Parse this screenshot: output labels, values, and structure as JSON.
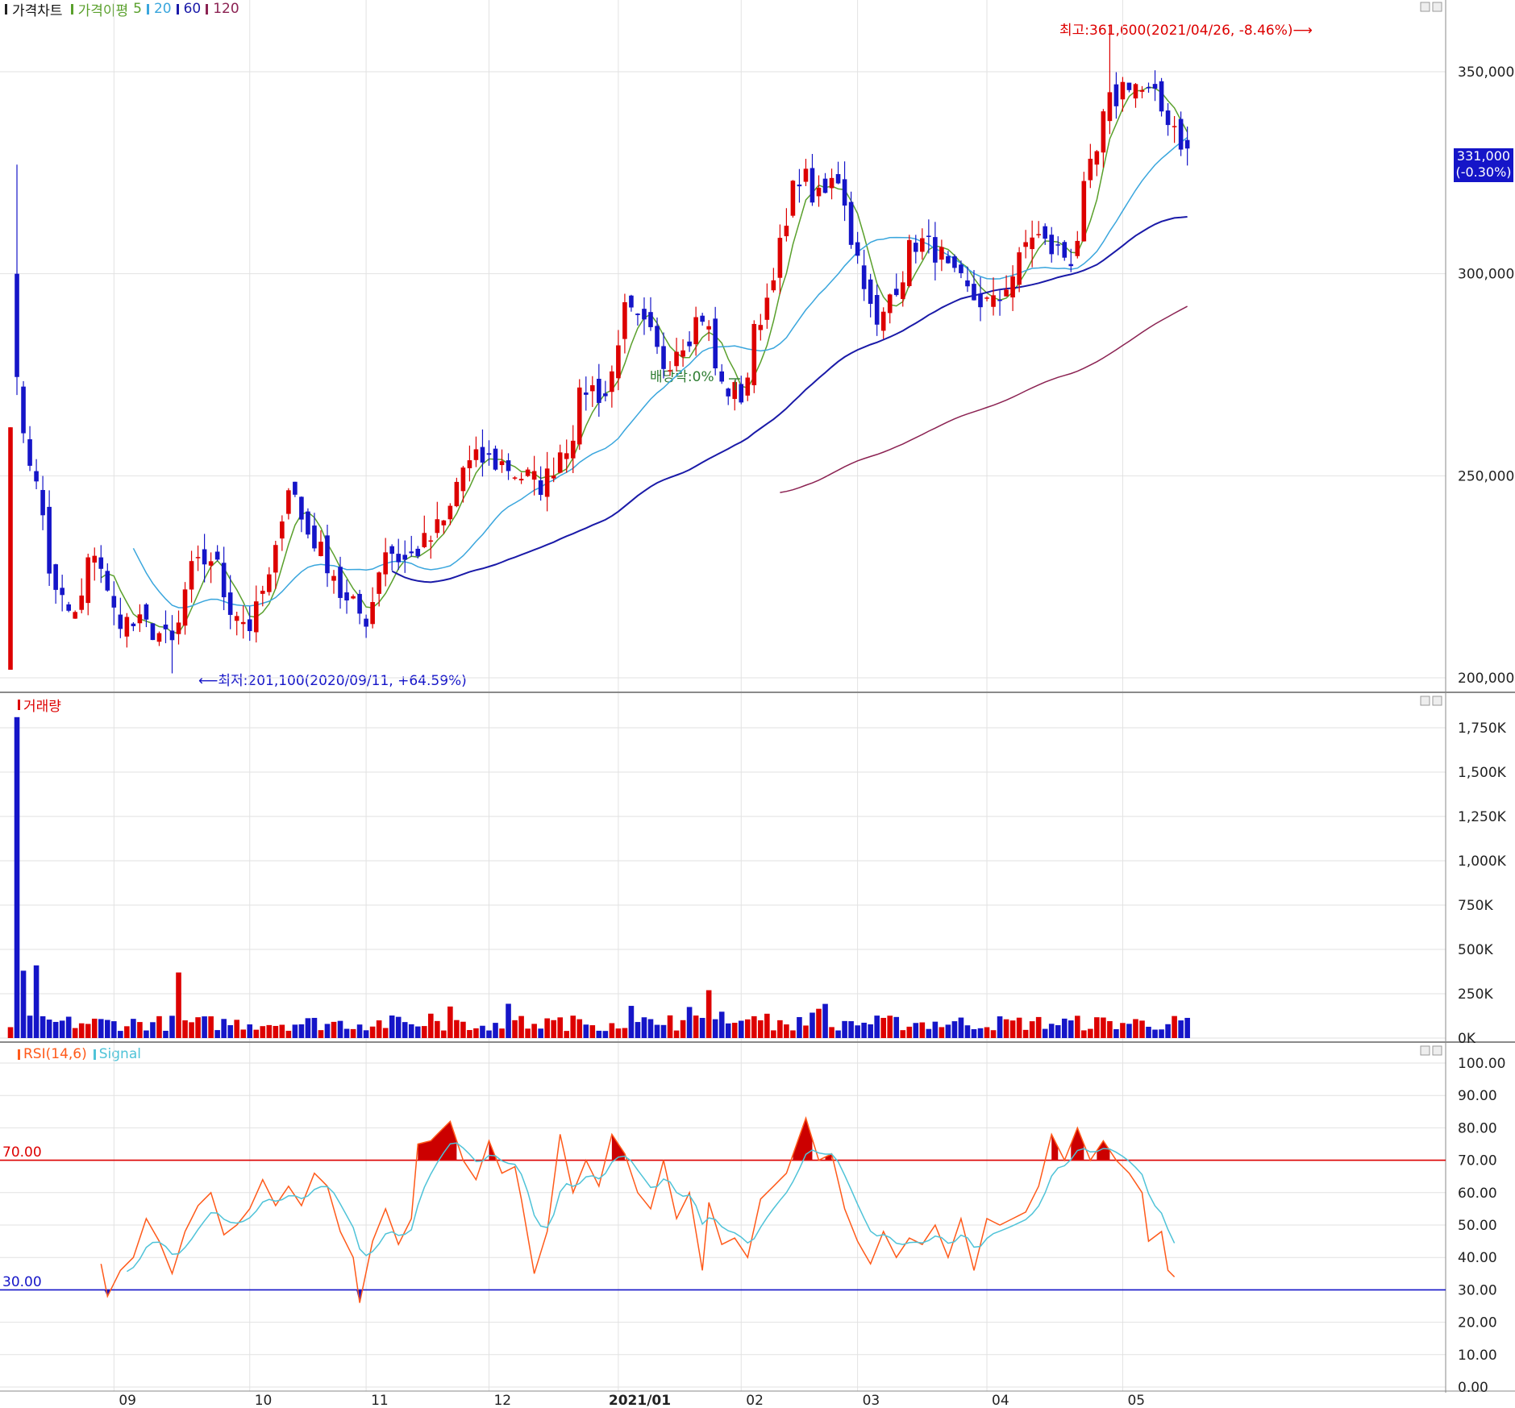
{
  "legend": {
    "price_chart": "가격차트",
    "ma_label": "가격이평",
    "ma_periods": [
      "5",
      "20",
      "60",
      "120"
    ],
    "ma_colors": [
      "#5aa02c",
      "#3aa6dd",
      "#1a1aa8",
      "#8b2252"
    ],
    "volume": "거래량",
    "rsi": "RSI(14,6)",
    "signal": "Signal"
  },
  "colors": {
    "up": "#dd0000",
    "down": "#1515c8",
    "rsi_line": "#ff5a1a",
    "signal_line": "#4fc3d8",
    "rsi_fill": "#cc0000",
    "upper_line": "#dd0000",
    "lower_line": "#1515c8",
    "current_badge": "#1515c8"
  },
  "annotations": {
    "high": "최고:361,600(2021/04/26, -8.46%)⟶",
    "low": "⟵최저:201,100(2020/09/11, +64.59%)",
    "dividend": "배당락:0%"
  },
  "current_price": {
    "price": "331,000",
    "change": "(-0.30%)"
  },
  "rsi_levels": {
    "upper": "70.00",
    "lower": "30.00"
  },
  "chart_data": [
    {
      "type": "candlestick",
      "title": "가격차트",
      "y_ticks": [
        "350,000",
        "300,000",
        "250,000",
        "200,000"
      ],
      "ylim": [
        198000,
        366000
      ],
      "high": 361600,
      "low": 201100,
      "last_close": 331000,
      "x_tick_labels": [
        "09",
        "10",
        "11",
        "12",
        "2021/01",
        "02",
        "03",
        "04",
        "05"
      ],
      "knots": [
        [
          0,
          281000
        ],
        [
          2,
          262000
        ],
        [
          4,
          247000
        ],
        [
          7,
          220000
        ],
        [
          10,
          215000
        ],
        [
          13,
          232000
        ],
        [
          16,
          216000
        ],
        [
          19,
          213000
        ],
        [
          22,
          212000
        ],
        [
          25,
          208000
        ],
        [
          28,
          226000
        ],
        [
          31,
          230000
        ],
        [
          34,
          218000
        ],
        [
          37,
          213000
        ],
        [
          40,
          224000
        ],
        [
          43,
          248000
        ],
        [
          46,
          236000
        ],
        [
          49,
          229000
        ],
        [
          52,
          218000
        ],
        [
          55,
          215000
        ],
        [
          58,
          232000
        ],
        [
          61,
          229000
        ],
        [
          64,
          233000
        ],
        [
          67,
          238000
        ],
        [
          70,
          252000
        ],
        [
          73,
          254000
        ],
        [
          76,
          253000
        ],
        [
          79,
          250000
        ],
        [
          82,
          248000
        ],
        [
          86,
          258000
        ],
        [
          89,
          272000
        ],
        [
          92,
          270000
        ],
        [
          95,
          290000
        ],
        [
          98,
          286000
        ],
        [
          101,
          278000
        ],
        [
          104,
          284000
        ],
        [
          107,
          290000
        ],
        [
          110,
          272000
        ],
        [
          113,
          270000
        ],
        [
          116,
          290000
        ],
        [
          119,
          306000
        ],
        [
          122,
          325000
        ],
        [
          125,
          318000
        ],
        [
          128,
          324000
        ],
        [
          131,
          304000
        ],
        [
          134,
          286000
        ],
        [
          137,
          298000
        ],
        [
          140,
          308000
        ],
        [
          143,
          306000
        ],
        [
          146,
          298000
        ],
        [
          149,
          294000
        ],
        [
          152,
          292000
        ],
        [
          155,
          300000
        ],
        [
          158,
          310000
        ],
        [
          161,
          306000
        ],
        [
          164,
          304000
        ],
        [
          167,
          325000
        ],
        [
          170,
          342000
        ],
        [
          173,
          348000
        ],
        [
          176,
          344000
        ],
        [
          179,
          339000
        ],
        [
          182,
          331000
        ]
      ],
      "moving_averages": [
        {
          "name": "5",
          "color": "#5aa02c"
        },
        {
          "name": "20",
          "color": "#3aa6dd"
        },
        {
          "name": "60",
          "color": "#1a1aa8"
        },
        {
          "name": "120",
          "color": "#8b2252"
        }
      ]
    },
    {
      "type": "bar",
      "title": "거래량",
      "y_ticks": [
        "1,750K",
        "1,500K",
        "1,250K",
        "1,000K",
        "750K",
        "500K",
        "250K",
        "0K"
      ],
      "ylim": [
        0,
        1750000
      ],
      "spikes": [
        [
          1,
          1810000
        ],
        [
          2,
          380000
        ],
        [
          4,
          410000
        ],
        [
          26,
          370000
        ],
        [
          108,
          270000
        ]
      ]
    },
    {
      "type": "line",
      "title": "RSI(14,6)",
      "y_ticks": [
        "100.00",
        "90.00",
        "80.00",
        "70.00",
        "60.00",
        "50.00",
        "40.00",
        "30.00",
        "20.00",
        "10.00",
        "0.00"
      ],
      "ylim": [
        0,
        100
      ],
      "levels": [
        70,
        30
      ],
      "rsi": [
        [
          14,
          38
        ],
        [
          15,
          28
        ],
        [
          17,
          36
        ],
        [
          19,
          40
        ],
        [
          21,
          52
        ],
        [
          23,
          45
        ],
        [
          25,
          35
        ],
        [
          27,
          48
        ],
        [
          29,
          56
        ],
        [
          31,
          60
        ],
        [
          33,
          47
        ],
        [
          35,
          50
        ],
        [
          37,
          55
        ],
        [
          39,
          64
        ],
        [
          41,
          56
        ],
        [
          43,
          62
        ],
        [
          45,
          56
        ],
        [
          47,
          66
        ],
        [
          49,
          62
        ],
        [
          51,
          48
        ],
        [
          53,
          40
        ],
        [
          54,
          26
        ],
        [
          56,
          45
        ],
        [
          58,
          55
        ],
        [
          60,
          44
        ],
        [
          62,
          52
        ],
        [
          63,
          75
        ],
        [
          65,
          76
        ],
        [
          67,
          80
        ],
        [
          68,
          82
        ],
        [
          70,
          70
        ],
        [
          72,
          64
        ],
        [
          74,
          76
        ],
        [
          76,
          66
        ],
        [
          78,
          68
        ],
        [
          79,
          58
        ],
        [
          81,
          35
        ],
        [
          83,
          48
        ],
        [
          85,
          78
        ],
        [
          87,
          60
        ],
        [
          89,
          70
        ],
        [
          91,
          62
        ],
        [
          93,
          78
        ],
        [
          95,
          72
        ],
        [
          97,
          60
        ],
        [
          99,
          55
        ],
        [
          101,
          70
        ],
        [
          103,
          52
        ],
        [
          105,
          60
        ],
        [
          107,
          36
        ],
        [
          108,
          57
        ],
        [
          110,
          44
        ],
        [
          112,
          46
        ],
        [
          114,
          40
        ],
        [
          116,
          58
        ],
        [
          118,
          62
        ],
        [
          120,
          66
        ],
        [
          123,
          83
        ],
        [
          125,
          70
        ],
        [
          127,
          72
        ],
        [
          129,
          55
        ],
        [
          131,
          45
        ],
        [
          133,
          38
        ],
        [
          135,
          48
        ],
        [
          137,
          40
        ],
        [
          139,
          46
        ],
        [
          141,
          44
        ],
        [
          143,
          50
        ],
        [
          145,
          40
        ],
        [
          147,
          52
        ],
        [
          149,
          36
        ],
        [
          151,
          52
        ],
        [
          153,
          50
        ],
        [
          155,
          52
        ],
        [
          157,
          54
        ],
        [
          159,
          62
        ],
        [
          161,
          78
        ],
        [
          163,
          70
        ],
        [
          165,
          80
        ],
        [
          167,
          70
        ],
        [
          169,
          76
        ],
        [
          171,
          70
        ],
        [
          173,
          66
        ],
        [
          175,
          60
        ],
        [
          176,
          45
        ],
        [
          178,
          48
        ],
        [
          179,
          36
        ],
        [
          180,
          34
        ]
      ]
    }
  ]
}
